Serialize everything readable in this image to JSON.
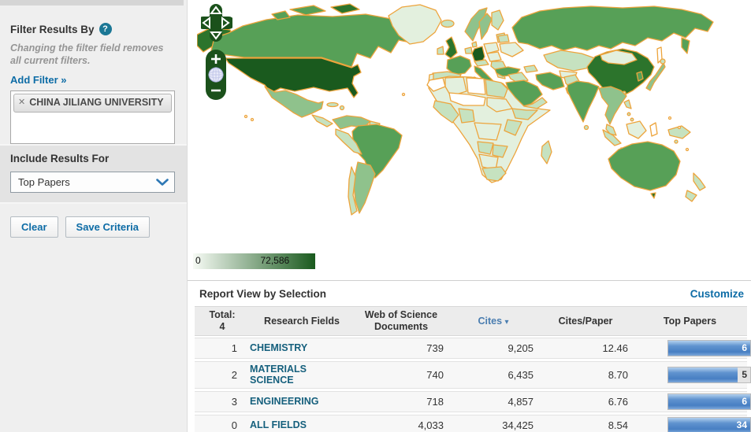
{
  "colors": {
    "sidebar-bg": "#efefef",
    "sidebar-strip": "#d5d5d5",
    "section-bg": "#e3e3e3",
    "heading": "#333333",
    "note": "#959595",
    "link": "#0d6ca6",
    "help-bg": "#1b7795",
    "accent-blue": "#4a7db0",
    "field-link": "#16607d",
    "legend-start": "#f7fbf5",
    "legend-end": "#1a5a1e",
    "map-border": "#eda43c",
    "map-g1": "#1a5a1e",
    "map-g2": "#2c742c",
    "map-g3": "#57a057",
    "map-g4": "#8fc28c",
    "map-g5": "#c6e2c0",
    "map-g6": "#e3f0de",
    "control-green": "#1b511b"
  },
  "sidebar": {
    "filter_heading": "Filter Results By",
    "help_icon": "?",
    "note": "Changing the filter field removes all current filters.",
    "add_filter_link": "Add Filter »",
    "filter_chip": {
      "remove_icon": "✕",
      "label": "CHINA JILIANG UNIVERSITY"
    },
    "include_heading": "Include Results For",
    "include_dropdown_value": "Top Papers",
    "clear_button": "Clear",
    "save_button": "Save Criteria"
  },
  "map": {
    "legend_min": "0",
    "legend_max": "72,586",
    "zoom_in_label": "+",
    "zoom_out_label": "−"
  },
  "table": {
    "title": "Report View by Selection",
    "customize_link": "Customize",
    "total_label": "Total:",
    "total_value": "4",
    "columns": {
      "field": "Research Fields",
      "wos": "Web of Science Documents",
      "cites": "Cites",
      "cpp": "Cites/Paper",
      "top": "Top Papers"
    },
    "sort_icon": "▾",
    "rows": [
      {
        "rank": "1",
        "field": "CHEMISTRY",
        "wos": "739",
        "cites": "9,205",
        "cpp": "12.46",
        "top": "6",
        "bar_pct": 100
      },
      {
        "rank": "2",
        "field": "MATERIALS SCIENCE",
        "wos": "740",
        "cites": "6,435",
        "cpp": "8.70",
        "top": "5",
        "bar_pct": 85
      },
      {
        "rank": "3",
        "field": "ENGINEERING",
        "wos": "718",
        "cites": "4,857",
        "cpp": "6.76",
        "top": "6",
        "bar_pct": 100
      },
      {
        "rank": "0",
        "field": "ALL FIELDS",
        "wos": "4,033",
        "cites": "34,425",
        "cpp": "8.54",
        "top": "34",
        "bar_pct": 100
      }
    ]
  }
}
